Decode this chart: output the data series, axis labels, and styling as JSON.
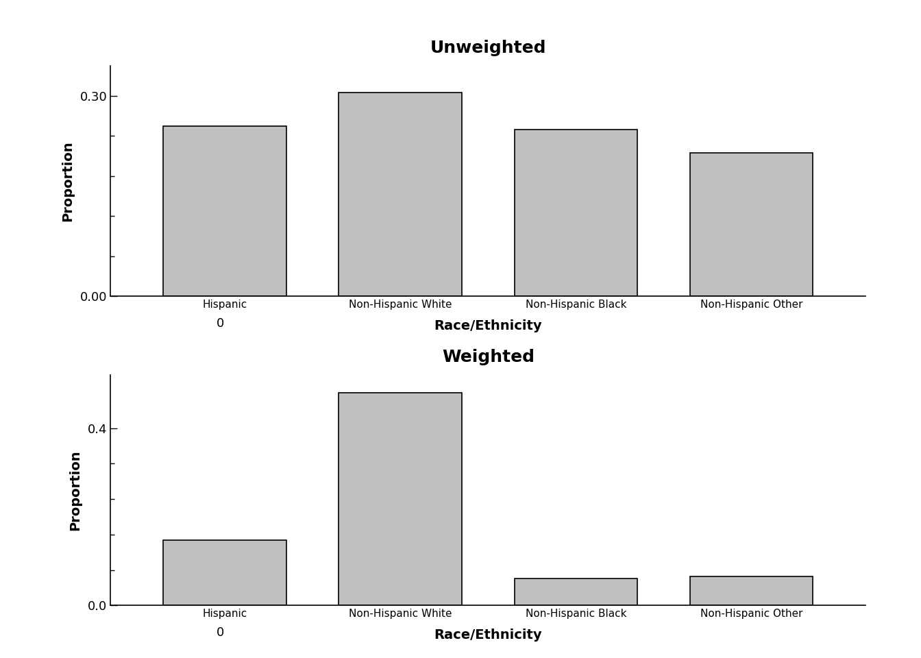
{
  "categories": [
    "Hispanic",
    "Non-Hispanic White",
    "Non-Hispanic Black",
    "Non-Hispanic Other"
  ],
  "unweighted_values": [
    0.255,
    0.305,
    0.25,
    0.215
  ],
  "weighted_values": [
    0.148,
    0.48,
    0.06,
    0.065
  ],
  "unweighted_title": "Unweighted",
  "weighted_title": "Weighted",
  "xlabel": "Race/Ethnicity",
  "ylabel": "Proportion",
  "unweighted_ylim": [
    0,
    0.345
  ],
  "weighted_ylim": [
    0,
    0.52
  ],
  "unweighted_ytick_major": [
    0.0,
    0.3
  ],
  "unweighted_ytick_minor_n": 5,
  "weighted_ytick_major": [
    0.0,
    0.4
  ],
  "weighted_ytick_minor_n": 5,
  "bar_color": "#c0c0c0",
  "bar_edgecolor": "#000000",
  "background_color": "#ffffff",
  "title_fontsize": 18,
  "axis_label_fontsize": 14,
  "tick_label_fontsize": 13,
  "xtick_label_fontsize": 11,
  "bar_width": 0.7
}
